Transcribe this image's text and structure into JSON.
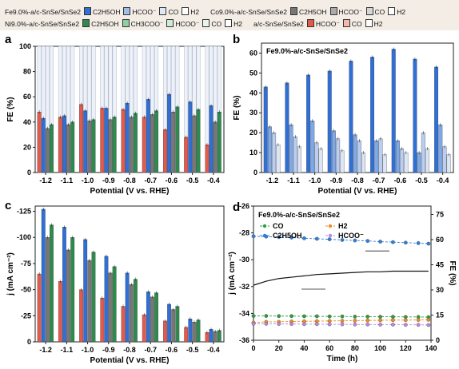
{
  "legend": {
    "row1": [
      {
        "group": "Fe9.0%-a/c-SnSe/SnSe2",
        "items": [
          {
            "label": "C2H5OH",
            "color": "#2f6fd6"
          },
          {
            "label": "HCOO⁻",
            "color": "#9fbfe8"
          },
          {
            "label": "CO",
            "color": "#dfe8f5"
          },
          {
            "label": "H2",
            "color": "#ffffff"
          }
        ]
      },
      {
        "group": "Co9.0%-a/c-SnSe/SnSe2",
        "items": [
          {
            "label": "C2H5OH",
            "color": "#777777"
          },
          {
            "label": "HCOO⁻",
            "color": "#aaaaaa"
          },
          {
            "label": "CO",
            "color": "#d6d6d6"
          },
          {
            "label": "H2",
            "color": "#ffffff"
          }
        ]
      }
    ],
    "row2": [
      {
        "group": "Ni9.0%-a/c-SnSe/SnSe2",
        "items": [
          {
            "label": "C2H5OH",
            "color": "#2e8b4e"
          },
          {
            "label": "CH3COO⁻",
            "color": "#8fcfa0"
          },
          {
            "label": "HCOO⁻",
            "color": "#cfead6"
          },
          {
            "label": "CO",
            "color": "#e8f5ec"
          },
          {
            "label": "H2",
            "color": "#ffffff"
          }
        ]
      },
      {
        "group": "a/c-SnSe/SnSe2",
        "items": [
          {
            "label": "HCOO⁻",
            "color": "#e35a4c"
          },
          {
            "label": "CO",
            "color": "#f5b7ae"
          },
          {
            "label": "H2",
            "color": "#ffffff"
          }
        ]
      }
    ]
  },
  "panels": {
    "a": {
      "letter": "a",
      "ylabel": "FE (%)",
      "xlabel": "Potential (V vs. RHE)"
    },
    "b": {
      "letter": "b",
      "ylabel": "FE (%)",
      "xlabel": "Potential (V vs. RHE)",
      "inset_title": "Fe9.0%-a/c-SnSe/SnSe2"
    },
    "c": {
      "letter": "c",
      "ylabel": "j (mA cm⁻²)",
      "xlabel": "Potential (V vs. RHE)"
    },
    "d": {
      "letter": "d",
      "ylabel": "j (mA cm⁻²)",
      "ylabel2": "FE (%)",
      "xlabel": "Time (h)",
      "inset_title": "Fe9.0%-a/c-SnSe/SnSe2",
      "legend": [
        {
          "label": "CO",
          "color": "#2e9e3e",
          "marker": "circle"
        },
        {
          "label": "H2",
          "color": "#f08a24",
          "marker": "tri-down"
        },
        {
          "label": "C2H5OH",
          "color": "#2f7fd8",
          "marker": "square"
        },
        {
          "label": "HCOO⁻",
          "color": "#b48cd6",
          "marker": "tri-up"
        }
      ]
    }
  },
  "chart_data": [
    {
      "panel": "a",
      "type": "bar",
      "categories": [
        "-1.2",
        "-1.1",
        "-1.0",
        "-0.9",
        "-0.8",
        "-0.7",
        "-0.6",
        "-0.5",
        "-0.4"
      ],
      "ylim": [
        0,
        100
      ],
      "yticks": [
        0,
        20,
        40,
        60,
        80,
        100
      ],
      "series": [
        {
          "name": "a/c-SnSe/SnSe2",
          "color": "#e35a4c",
          "values": [
            48,
            44,
            54,
            51,
            50,
            44,
            34,
            28,
            22
          ]
        },
        {
          "name": "Fe9.0%-a/c-SnSe/SnSe2",
          "color": "#2f6fd6",
          "values": [
            43,
            45,
            49,
            51,
            55,
            58,
            62,
            56,
            53
          ]
        },
        {
          "name": "Co9.0%-a/c-SnSe/SnSe2",
          "color": "#777777",
          "values": [
            35,
            38,
            41,
            42,
            44,
            46,
            48,
            45,
            40
          ]
        },
        {
          "name": "Ni9.0%-a/c-SnSe/SnSe2",
          "color": "#2e8b4e",
          "values": [
            38,
            40,
            42,
            44,
            47,
            49,
            52,
            50,
            48
          ]
        }
      ]
    },
    {
      "panel": "b",
      "type": "bar",
      "categories": [
        "-1.2",
        "-1.1",
        "-1.0",
        "-0.9",
        "-0.8",
        "-0.7",
        "-0.6",
        "-0.5",
        "-0.4"
      ],
      "ylim": [
        0,
        65
      ],
      "yticks": [
        0,
        10,
        20,
        30,
        40,
        50,
        60
      ],
      "series": [
        {
          "name": "C2H5OH",
          "color": "#2f6fd6",
          "values": [
            43,
            45,
            49,
            51,
            56,
            58,
            62,
            57,
            53
          ]
        },
        {
          "name": "HCOO⁻",
          "color": "#7fa9e6",
          "values": [
            23,
            24,
            26,
            21,
            19,
            16,
            16,
            10,
            24
          ]
        },
        {
          "name": "CO",
          "color": "#b9cef0",
          "values": [
            20,
            18,
            15,
            17,
            16,
            17,
            12,
            20,
            13
          ]
        },
        {
          "name": "H2",
          "color": "#dde6f6",
          "values": [
            14,
            13,
            12,
            11,
            10,
            9,
            10,
            12,
            9
          ]
        }
      ]
    },
    {
      "panel": "c",
      "type": "bar",
      "categories": [
        "-1.2",
        "-1.1",
        "-1.0",
        "-0.9",
        "-0.8",
        "-0.7",
        "-0.6",
        "-0.5",
        "-0.4"
      ],
      "ylim": [
        0,
        -130
      ],
      "yticks": [
        0,
        -25,
        -50,
        -75,
        -100,
        -125
      ],
      "series": [
        {
          "name": "a/c-SnSe/SnSe2",
          "color": "#e35a4c",
          "values": [
            -65,
            -58,
            -50,
            -42,
            -34,
            -26,
            -20,
            -14,
            -9
          ]
        },
        {
          "name": "Fe9.0%-a/c-SnSe/SnSe2",
          "color": "#2f6fd6",
          "values": [
            -127,
            -110,
            -98,
            -82,
            -66,
            -48,
            -36,
            -22,
            -12
          ]
        },
        {
          "name": "Co9.0%-a/c-SnSe/SnSe2",
          "color": "#777777",
          "values": [
            -100,
            -88,
            -78,
            -66,
            -55,
            -43,
            -31,
            -19,
            -10
          ]
        },
        {
          "name": "Ni9.0%-a/c-SnSe/SnSe2",
          "color": "#2e8b4e",
          "values": [
            -112,
            -100,
            -86,
            -72,
            -60,
            -47,
            -34,
            -21,
            -11
          ]
        }
      ]
    },
    {
      "panel": "d",
      "type": "line",
      "xlim": [
        0,
        140
      ],
      "xticks": [
        0,
        20,
        40,
        60,
        80,
        100,
        120,
        140
      ],
      "ylim": [
        -36,
        -26
      ],
      "yticks": [
        -26,
        -28,
        -30,
        -32,
        -34,
        -36
      ],
      "y2lim": [
        0,
        80
      ],
      "y2ticks": [
        0,
        15,
        30,
        45,
        60,
        75
      ],
      "series": [
        {
          "name": "j",
          "axis": "left",
          "color": "#111111",
          "x": [
            0,
            10,
            20,
            30,
            40,
            50,
            60,
            70,
            80,
            90,
            100,
            110,
            120,
            130,
            138
          ],
          "y": [
            -31.9,
            -31.6,
            -31.4,
            -31.3,
            -31.2,
            -31.1,
            -31.05,
            -31.0,
            -30.95,
            -30.9,
            -30.9,
            -30.85,
            -30.85,
            -30.85,
            -30.85
          ]
        },
        {
          "name": "C2H5OH",
          "axis": "right",
          "color": "#2f7fd8",
          "x": [
            0,
            10,
            20,
            30,
            40,
            50,
            60,
            70,
            80,
            90,
            100,
            110,
            120,
            130,
            138
          ],
          "y": [
            62,
            61.8,
            61.5,
            61.2,
            60.8,
            60.5,
            60.2,
            59.8,
            59.5,
            59.2,
            58.8,
            58.5,
            58.2,
            57.9,
            57.6
          ]
        },
        {
          "name": "CO",
          "axis": "right",
          "color": "#2e9e3e",
          "x": [
            0,
            10,
            20,
            30,
            40,
            50,
            60,
            70,
            80,
            90,
            100,
            110,
            120,
            130,
            138
          ],
          "y": [
            14.5,
            14.5,
            14.4,
            14.4,
            14.3,
            14.3,
            14.2,
            14.2,
            14.1,
            14.1,
            14.0,
            14.0,
            13.9,
            13.9,
            13.8
          ]
        },
        {
          "name": "H2",
          "axis": "right",
          "color": "#f08a24",
          "x": [
            0,
            10,
            20,
            30,
            40,
            50,
            60,
            70,
            80,
            90,
            100,
            110,
            120,
            130,
            138
          ],
          "y": [
            10.5,
            11,
            11,
            11.2,
            11.3,
            11.4,
            11.5,
            11.6,
            11.7,
            11.8,
            11.9,
            12,
            12,
            12.1,
            12.2
          ]
        },
        {
          "name": "HCOO⁻",
          "axis": "right",
          "color": "#b48cd6",
          "x": [
            0,
            10,
            20,
            30,
            40,
            50,
            60,
            70,
            80,
            90,
            100,
            110,
            120,
            130,
            138
          ],
          "y": [
            9.8,
            9.8,
            9.7,
            9.7,
            9.6,
            9.6,
            9.5,
            9.5,
            9.4,
            9.4,
            9.3,
            9.3,
            9.2,
            9.2,
            9.1
          ]
        }
      ]
    }
  ]
}
